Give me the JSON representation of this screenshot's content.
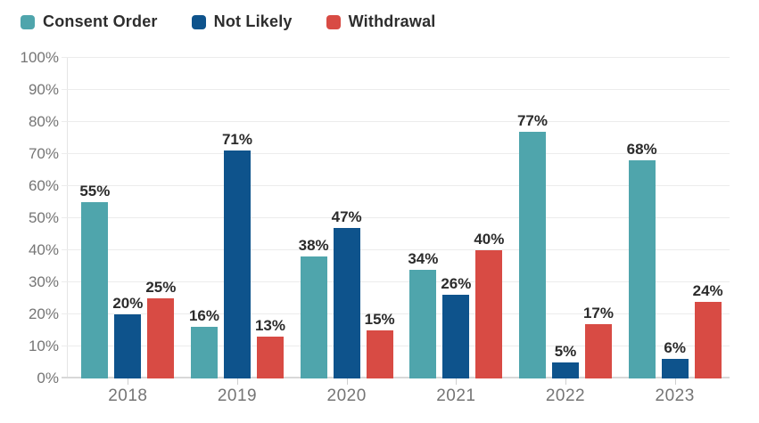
{
  "chart_data": {
    "type": "bar",
    "title": "",
    "xlabel": "",
    "ylabel": "",
    "categories": [
      "2018",
      "2019",
      "2020",
      "2021",
      "2022",
      "2023"
    ],
    "series": [
      {
        "name": "Consent Order",
        "color": "#4FA5AC",
        "values": [
          55,
          16,
          38,
          34,
          77,
          68
        ]
      },
      {
        "name": "Not Likely",
        "color": "#0E538C",
        "values": [
          20,
          71,
          47,
          26,
          5,
          6
        ]
      },
      {
        "name": "Withdrawal",
        "color": "#D84B44",
        "values": [
          25,
          13,
          15,
          40,
          17,
          24
        ]
      }
    ],
    "ylim": [
      0,
      100
    ],
    "y_tick_labels": [
      "0%",
      "10%",
      "20%",
      "30%",
      "40%",
      "50%",
      "60%",
      "70%",
      "80%",
      "90%",
      "100%"
    ],
    "value_suffix": "%",
    "grid": true,
    "data_labels": true,
    "legend_position": "top-left"
  },
  "colors": {
    "grid_line": "#ececec",
    "zero_line": "#d8d8d8",
    "axis_tick": "#cfcfcf",
    "axis_text": "#757575",
    "value_label_text": "#2b2b2b",
    "legend_text": "#2d2d2d"
  }
}
